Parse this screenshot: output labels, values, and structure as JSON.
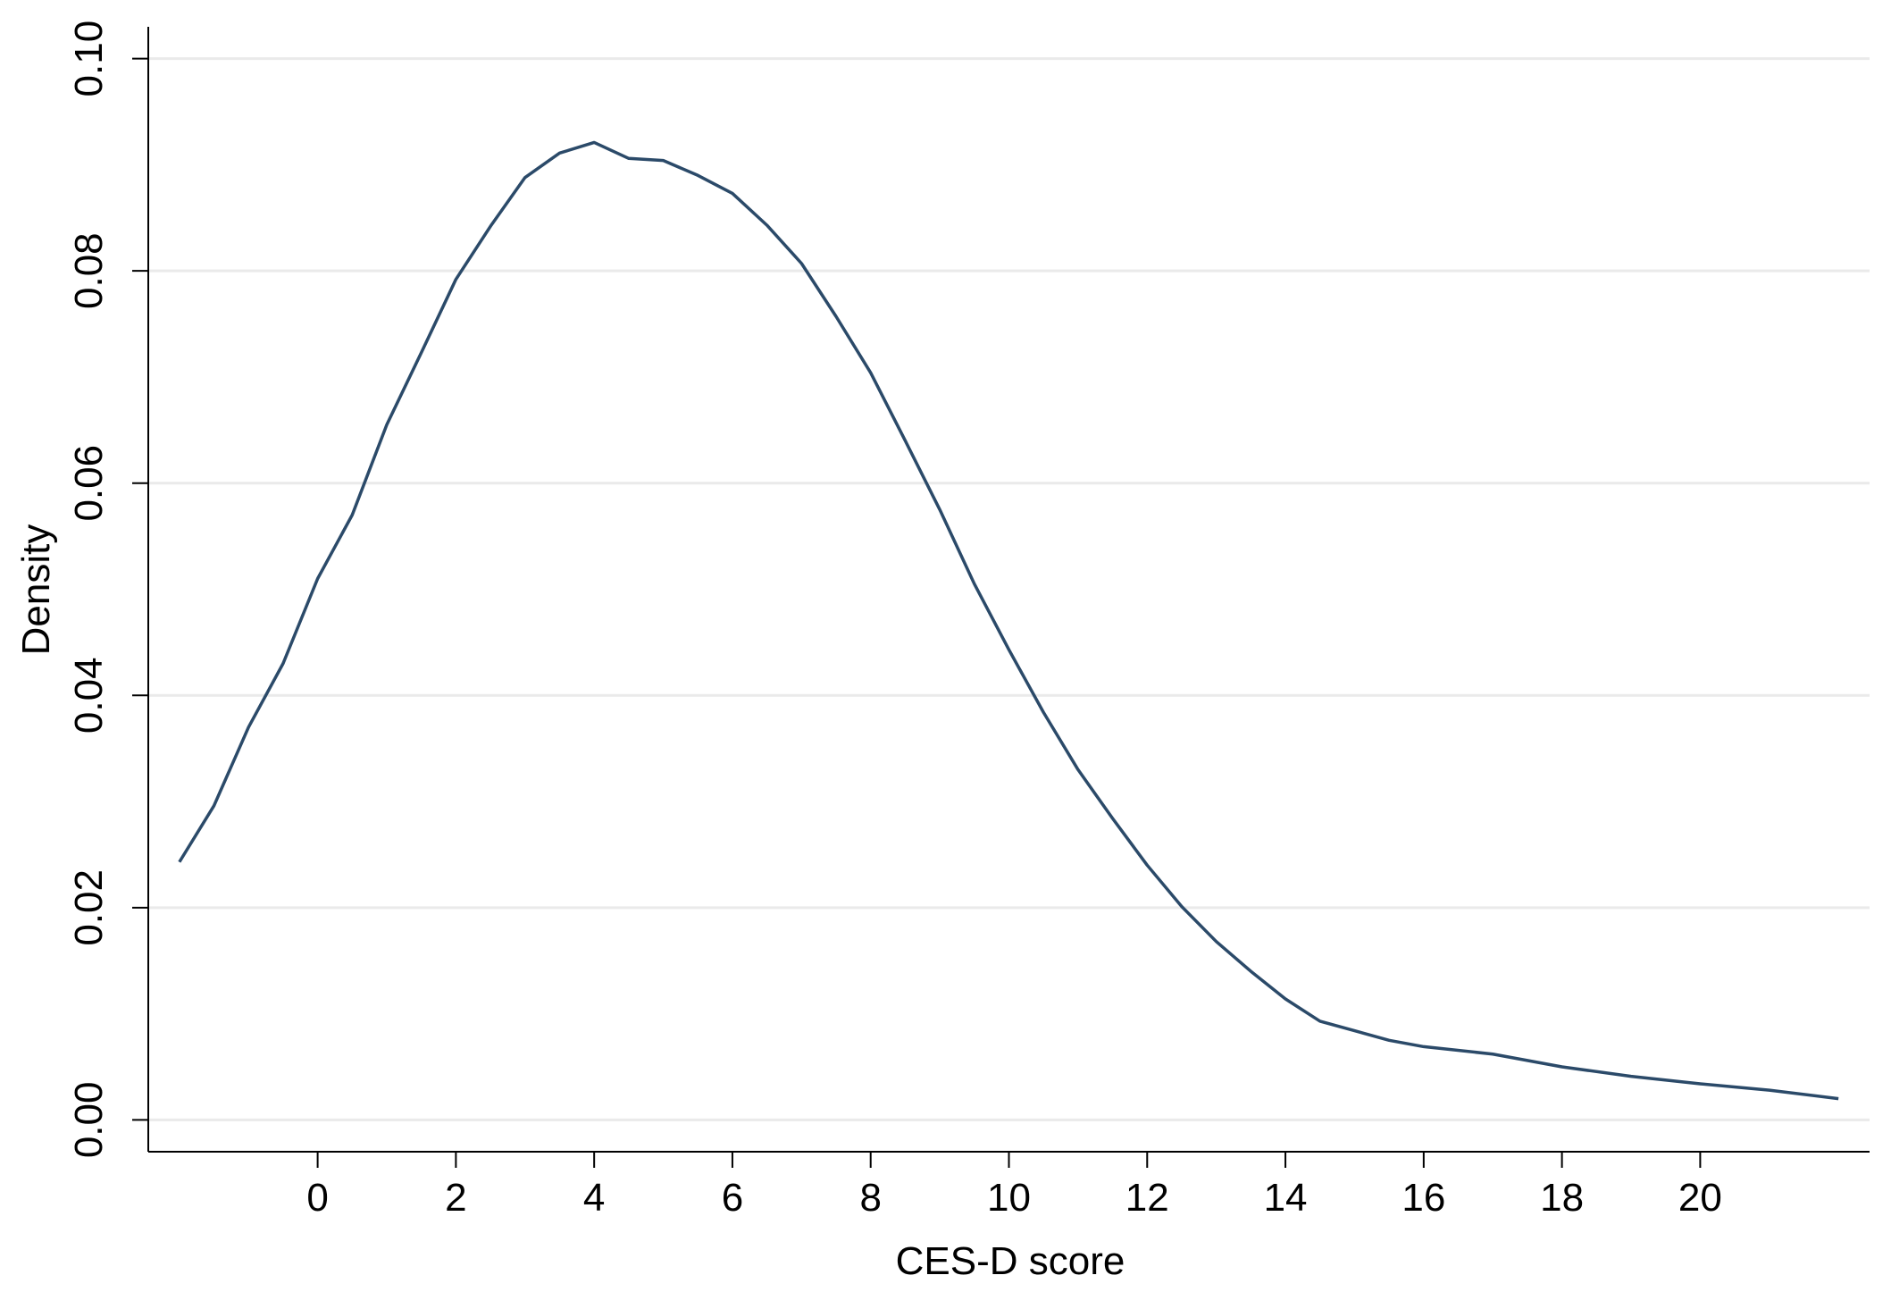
{
  "chart_data": {
    "type": "line",
    "xlabel": "CES-D score",
    "ylabel": "Density",
    "x": [
      -2,
      -1.5,
      -1,
      -0.5,
      0,
      0.5,
      1,
      1.5,
      2,
      2.5,
      3,
      3.5,
      4,
      4.5,
      5,
      5.5,
      6,
      6.5,
      7,
      7.5,
      8,
      8.5,
      9,
      9.5,
      10,
      10.5,
      11,
      11.5,
      12,
      12.5,
      13,
      13.5,
      14,
      14.5,
      15,
      15.5,
      16,
      17,
      18,
      19,
      20,
      21,
      22
    ],
    "values": [
      0.0243,
      0.0296,
      0.037,
      0.043,
      0.051,
      0.057,
      0.0655,
      0.0723,
      0.0792,
      0.0842,
      0.0888,
      0.0911,
      0.0921,
      0.0906,
      0.0904,
      0.089,
      0.0873,
      0.0843,
      0.0807,
      0.0757,
      0.0704,
      0.064,
      0.0575,
      0.0505,
      0.0443,
      0.0384,
      0.033,
      0.0284,
      0.024,
      0.0201,
      0.0168,
      0.014,
      0.0114,
      0.0093,
      0.0084,
      0.0075,
      0.0069,
      0.0062,
      0.005,
      0.0041,
      0.0034,
      0.0028,
      0.002
    ],
    "color": "#2b4a69",
    "xlim": [
      -2.45,
      22.45
    ],
    "xticks": [
      0,
      2,
      4,
      6,
      8,
      10,
      12,
      14,
      16,
      18,
      20
    ],
    "ylim": [
      -0.003,
      0.103
    ],
    "yticks": [
      {
        "value": 0,
        "label": "0.00"
      },
      0.02,
      0.04,
      0.06,
      0.08,
      {
        "value": 0.1,
        "label": "0.10"
      }
    ],
    "grid": true
  }
}
